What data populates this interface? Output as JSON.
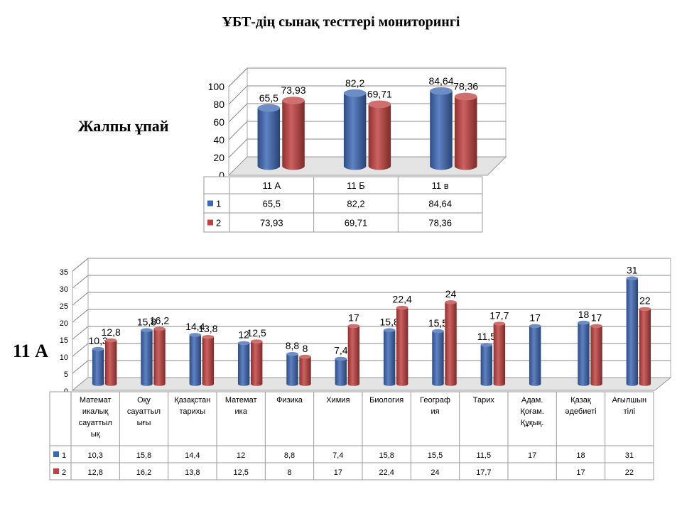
{
  "title": "ҰБТ-дің сынақ тесттері мониторингі",
  "labels": {
    "total": "Жалпы ұпай",
    "class": "11 А"
  },
  "colors": {
    "series1": "#3c67b4",
    "series2": "#c0403e"
  },
  "chart_data": [
    {
      "type": "bar",
      "categories": [
        "11 А",
        "11 Б",
        "11 в"
      ],
      "series": [
        {
          "name": "1",
          "values": [
            65.5,
            82.2,
            84.64
          ],
          "labels": [
            "65,5",
            "82,2",
            "84,64"
          ]
        },
        {
          "name": "2",
          "values": [
            73.93,
            69.71,
            78.36
          ],
          "labels": [
            "73,93",
            "69,71",
            "78,36"
          ]
        }
      ],
      "yticks": [
        "0",
        "20",
        "40",
        "60",
        "80",
        "100"
      ],
      "ylim": [
        0,
        100
      ],
      "grid": true,
      "legend": "data-table"
    },
    {
      "type": "bar",
      "categories": [
        "Математикалық сауаттылық",
        "Оқу сауаттылығы",
        "Қазақстан тарихы",
        "Математика",
        "Физика",
        "Химия",
        "Биология",
        "География",
        "Тарих",
        "Адам. Қоғам. Құқық.",
        "Қазақ әдебиеті",
        "Ағылшын тілі"
      ],
      "category_lines": [
        [
          "Математ",
          "икалық",
          "сауаттыл",
          "ық"
        ],
        [
          "Оқу",
          "сауаттыл",
          "ығы"
        ],
        [
          "Қазақстан",
          "тарихы"
        ],
        [
          "Математ",
          "ика"
        ],
        [
          "Физика"
        ],
        [
          "Химия"
        ],
        [
          "Биология"
        ],
        [
          "Географ",
          "ия"
        ],
        [
          "Тарих"
        ],
        [
          "Адам.",
          "Қоғам.",
          "Құқық."
        ],
        [
          "Қазақ",
          "әдебиеті"
        ],
        [
          "Ағылшын",
          "тілі"
        ]
      ],
      "series": [
        {
          "name": "1",
          "values": [
            10.3,
            15.8,
            14.4,
            12,
            8.8,
            7.4,
            15.8,
            15.5,
            11.5,
            17,
            18,
            31
          ],
          "labels": [
            "10,3",
            "15,8",
            "14,4",
            "12",
            "8,8",
            "7,4",
            "15,8",
            "15,5",
            "11,5",
            "17",
            "18",
            "31"
          ]
        },
        {
          "name": "2",
          "values": [
            12.8,
            16.2,
            13.8,
            12.5,
            8,
            17,
            22.4,
            24,
            17.7,
            null,
            17,
            22
          ],
          "labels": [
            "12,8",
            "16,2",
            "13,8",
            "12,5",
            "8",
            "17",
            "22,4",
            "24",
            "17,7",
            "",
            "17",
            "22"
          ]
        }
      ],
      "yticks": [
        "0",
        "5",
        "10",
        "15",
        "20",
        "25",
        "30",
        "35"
      ],
      "ylim": [
        0,
        35
      ],
      "grid": true,
      "legend": "data-table"
    }
  ]
}
